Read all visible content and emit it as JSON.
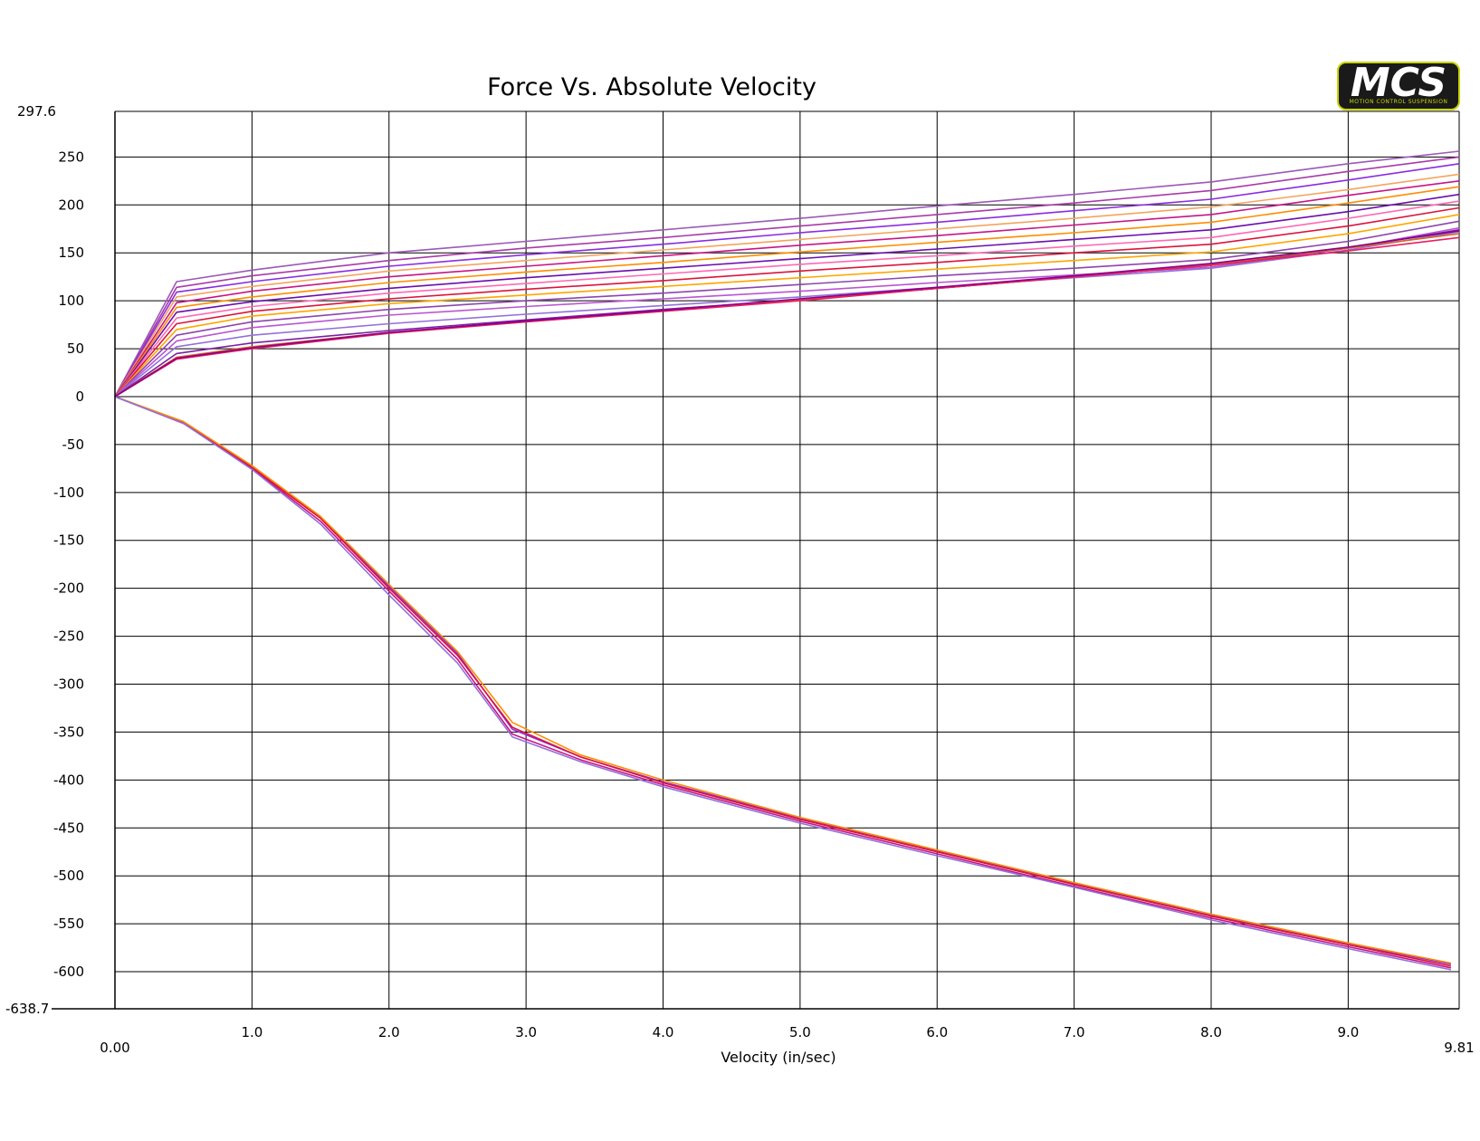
{
  "chart_data": {
    "type": "line",
    "title": "Force Vs. Absolute Velocity",
    "xlabel": "Velocity (in/sec)",
    "ylabel": "",
    "xlim": [
      0.0,
      9.81
    ],
    "ylim": [
      -638.7,
      297.6
    ],
    "x_ticks": [
      {
        "value": 0.0,
        "label": "0.00"
      },
      {
        "value": 1.0,
        "label": "1.0"
      },
      {
        "value": 2.0,
        "label": "2.0"
      },
      {
        "value": 3.0,
        "label": "3.0"
      },
      {
        "value": 4.0,
        "label": "4.0"
      },
      {
        "value": 5.0,
        "label": "5.0"
      },
      {
        "value": 6.0,
        "label": "6.0"
      },
      {
        "value": 7.0,
        "label": "7.0"
      },
      {
        "value": 8.0,
        "label": "8.0"
      },
      {
        "value": 9.0,
        "label": "9.0"
      },
      {
        "value": 9.81,
        "label": "9.81"
      }
    ],
    "y_ticks": [
      {
        "value": 297.6,
        "label": "297.6"
      },
      {
        "value": 250,
        "label": "250"
      },
      {
        "value": 200,
        "label": "200"
      },
      {
        "value": 150,
        "label": "150"
      },
      {
        "value": 100,
        "label": "100"
      },
      {
        "value": 50,
        "label": "50"
      },
      {
        "value": 0,
        "label": "0"
      },
      {
        "value": -50,
        "label": "-50"
      },
      {
        "value": -100,
        "label": "-100"
      },
      {
        "value": -150,
        "label": "-150"
      },
      {
        "value": -200,
        "label": "-200"
      },
      {
        "value": -250,
        "label": "-250"
      },
      {
        "value": -300,
        "label": "-300"
      },
      {
        "value": -350,
        "label": "-350"
      },
      {
        "value": -400,
        "label": "-400"
      },
      {
        "value": -450,
        "label": "-450"
      },
      {
        "value": -500,
        "label": "-500"
      },
      {
        "value": -550,
        "label": "-550"
      },
      {
        "value": -600,
        "label": "-600"
      },
      {
        "value": -638.7,
        "label": "-638.7"
      }
    ],
    "grid": true,
    "legend": "none",
    "series": [
      {
        "color": "#9b59b6",
        "x": [
          0,
          0.45,
          1.0,
          2.0,
          3.0,
          4.0,
          5.0,
          6.0,
          7.0,
          8.0,
          9.0,
          9.81
        ],
        "y": [
          0,
          120,
          132,
          150,
          162,
          174,
          186,
          199,
          211,
          224,
          243,
          256
        ]
      },
      {
        "color": "#a83aa8",
        "x": [
          0,
          0.45,
          1.0,
          2.0,
          3.0,
          4.0,
          5.0,
          6.0,
          7.0,
          8.0,
          9.0,
          9.81
        ],
        "y": [
          0,
          114,
          126,
          142,
          155,
          166,
          178,
          190,
          202,
          215,
          235,
          250
        ]
      },
      {
        "color": "#8a2be2",
        "x": [
          0,
          0.45,
          1.0,
          2.0,
          3.0,
          4.0,
          5.0,
          6.0,
          7.0,
          8.0,
          9.0,
          9.81
        ],
        "y": [
          0,
          109,
          120,
          136,
          148,
          159,
          171,
          182,
          194,
          206,
          226,
          243
        ]
      },
      {
        "color": "#f4a460",
        "x": [
          0,
          0.45,
          1.0,
          2.0,
          3.0,
          4.0,
          5.0,
          6.0,
          7.0,
          8.0,
          9.0,
          9.81
        ],
        "y": [
          0,
          104,
          115,
          131,
          142,
          153,
          164,
          175,
          186,
          198,
          216,
          232
        ]
      },
      {
        "color": "#c71585",
        "x": [
          0,
          0.45,
          1.0,
          2.0,
          3.0,
          4.0,
          5.0,
          6.0,
          7.0,
          8.0,
          9.0,
          9.81
        ],
        "y": [
          0,
          98,
          110,
          125,
          136,
          147,
          158,
          168,
          179,
          190,
          210,
          225
        ]
      },
      {
        "color": "#ff8c00",
        "x": [
          0,
          0.45,
          1.0,
          2.0,
          3.0,
          4.0,
          5.0,
          6.0,
          7.0,
          8.0,
          9.0,
          9.81
        ],
        "y": [
          0,
          93,
          104,
          119,
          130,
          140,
          151,
          161,
          171,
          182,
          202,
          219
        ]
      },
      {
        "color": "#6a0dad",
        "x": [
          0,
          0.45,
          1.0,
          2.0,
          3.0,
          4.0,
          5.0,
          6.0,
          7.0,
          8.0,
          9.0,
          9.81
        ],
        "y": [
          0,
          88,
          99,
          113,
          124,
          134,
          144,
          154,
          164,
          174,
          193,
          211
        ]
      },
      {
        "color": "#ff69b4",
        "x": [
          0,
          0.45,
          1.0,
          2.0,
          3.0,
          4.0,
          5.0,
          6.0,
          7.0,
          8.0,
          9.0,
          9.81
        ],
        "y": [
          0,
          82,
          94,
          108,
          118,
          128,
          138,
          147,
          157,
          166,
          186,
          204
        ]
      },
      {
        "color": "#dc143c",
        "x": [
          0,
          0.45,
          1.0,
          2.0,
          3.0,
          4.0,
          5.0,
          6.0,
          7.0,
          8.0,
          9.0,
          9.81
        ],
        "y": [
          0,
          76,
          89,
          102,
          112,
          121,
          131,
          140,
          150,
          159,
          178,
          197
        ]
      },
      {
        "color": "#ffa500",
        "x": [
          0,
          0.45,
          1.0,
          2.0,
          3.0,
          4.0,
          5.0,
          6.0,
          7.0,
          8.0,
          9.0,
          9.81
        ],
        "y": [
          0,
          70,
          84,
          97,
          106,
          115,
          124,
          133,
          142,
          151,
          170,
          190
        ]
      },
      {
        "color": "#8e44ad",
        "x": [
          0,
          0.45,
          1.0,
          2.0,
          3.0,
          4.0,
          5.0,
          6.0,
          7.0,
          8.0,
          9.0,
          9.81
        ],
        "y": [
          0,
          64,
          78,
          91,
          100,
          108,
          117,
          126,
          134,
          143,
          162,
          183
        ]
      },
      {
        "color": "#ba55d3",
        "x": [
          0,
          0.45,
          1.0,
          2.0,
          3.0,
          4.0,
          5.0,
          6.0,
          7.0,
          8.0,
          9.0,
          9.81
        ],
        "y": [
          0,
          58,
          72,
          85,
          94,
          102,
          110,
          119,
          127,
          135,
          155,
          176
        ]
      },
      {
        "color": "#9370db",
        "x": [
          0,
          0.45,
          1.0,
          2.0,
          3.0,
          4.0,
          5.0,
          6.0,
          7.0,
          8.0,
          9.0,
          9.81
        ],
        "y": [
          0,
          52,
          64,
          76,
          86,
          95,
          104,
          114,
          124,
          134,
          153,
          172
        ]
      },
      {
        "color": "#7b1fa2",
        "x": [
          0,
          0.45,
          1.0,
          2.0,
          3.0,
          4.0,
          5.0,
          6.0,
          7.0,
          8.0,
          9.0,
          9.81
        ],
        "y": [
          0,
          45,
          56,
          69,
          80,
          91,
          101,
          113,
          125,
          137,
          155,
          174
        ]
      },
      {
        "color": "#d2691e",
        "x": [
          0,
          0.45,
          1.0,
          2.0,
          3.0,
          4.0,
          5.0,
          6.0,
          7.0,
          8.0,
          9.0,
          9.81
        ],
        "y": [
          0,
          41,
          52,
          67,
          78,
          90,
          101,
          113,
          125,
          138,
          155,
          170
        ]
      },
      {
        "color": "#e91e63",
        "x": [
          0,
          0.45,
          1.0,
          2.0,
          3.0,
          4.0,
          5.0,
          6.0,
          7.0,
          8.0,
          9.0,
          9.81
        ],
        "y": [
          0,
          39,
          50,
          66,
          78,
          89,
          100,
          113,
          125,
          137,
          152,
          166
        ]
      },
      {
        "color": "#8b008b",
        "x": [
          0,
          0.45,
          1.0,
          2.0,
          3.0,
          4.0,
          5.0,
          6.0,
          7.0,
          8.0,
          9.0,
          9.81
        ],
        "y": [
          0,
          40,
          51,
          67,
          79,
          90,
          102,
          114,
          126,
          139,
          156,
          173
        ]
      },
      {
        "color": "#8a2be2",
        "x": [
          0,
          0.5,
          1.0,
          1.5,
          2.0,
          2.5,
          2.9,
          3.4,
          4.0,
          5.0,
          6.0,
          7.0,
          8.0,
          9.0,
          9.75
        ],
        "y": [
          0,
          -27,
          -73,
          -126,
          -198,
          -268,
          -347,
          -376,
          -402,
          -440,
          -474,
          -508,
          -541,
          -571,
          -592
        ]
      },
      {
        "color": "#c71585",
        "x": [
          0,
          0.5,
          1.0,
          1.5,
          2.0,
          2.5,
          2.9,
          3.4,
          4.0,
          5.0,
          6.0,
          7.0,
          8.0,
          9.0,
          9.75
        ],
        "y": [
          0,
          -27,
          -75,
          -130,
          -203,
          -274,
          -352,
          -379,
          -405,
          -443,
          -477,
          -511,
          -544,
          -574,
          -596
        ]
      },
      {
        "color": "#dc143c",
        "x": [
          0,
          0.5,
          1.0,
          1.5,
          2.0,
          2.5,
          2.9,
          3.4,
          4.0,
          5.0,
          6.0,
          7.0,
          8.0,
          9.0,
          9.75
        ],
        "y": [
          0,
          -28,
          -74,
          -127,
          -200,
          -270,
          -345,
          -376,
          -403,
          -441,
          -475,
          -509,
          -542,
          -572,
          -594
        ]
      },
      {
        "color": "#ff8c00",
        "x": [
          0,
          0.5,
          1.0,
          1.5,
          2.0,
          2.5,
          2.9,
          3.4,
          4.0,
          5.0,
          6.0,
          7.0,
          8.0,
          9.0,
          9.75
        ],
        "y": [
          0,
          -26,
          -72,
          -125,
          -196,
          -266,
          -340,
          -374,
          -400,
          -439,
          -473,
          -507,
          -540,
          -570,
          -591
        ]
      },
      {
        "color": "#9370db",
        "x": [
          0,
          0.5,
          1.0,
          1.5,
          2.0,
          2.5,
          2.9,
          3.4,
          4.0,
          5.0,
          6.0,
          7.0,
          8.0,
          9.0,
          9.75
        ],
        "y": [
          0,
          -28,
          -76,
          -133,
          -207,
          -278,
          -355,
          -381,
          -407,
          -445,
          -479,
          -512,
          -546,
          -576,
          -598
        ]
      }
    ]
  },
  "logo": {
    "text": "MCS",
    "subtext": "MOTION CONTROL SUSPENSION"
  }
}
